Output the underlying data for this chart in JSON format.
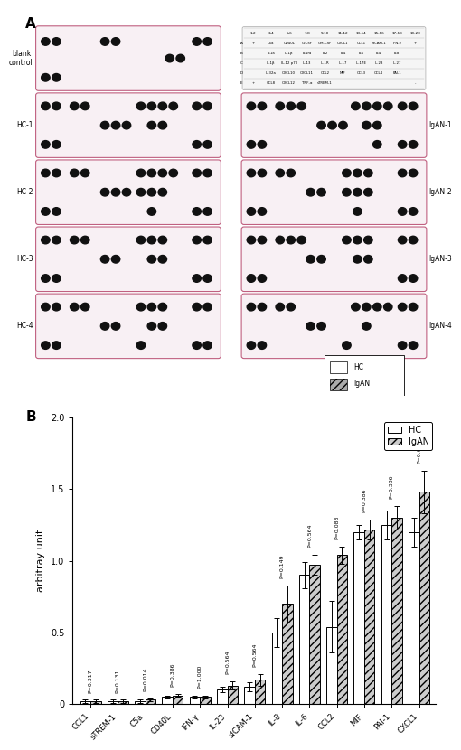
{
  "panel_A_label": "A",
  "panel_B_label": "B",
  "blot_labels_left": [
    "blank\ncontrol",
    "HC-1",
    "HC-2",
    "HC-3",
    "HC-4"
  ],
  "blot_labels_right": [
    "IgAN-1",
    "IgAN-2",
    "IgAN-3",
    "IgAN-4"
  ],
  "table_cols": [
    "1-2",
    "3-4",
    "5-6",
    "7-8",
    "9-10",
    "11-12",
    "13-14",
    "15-16",
    "17-18",
    "19-20"
  ],
  "table_rows": [
    "A",
    "B",
    "C",
    "D",
    "E"
  ],
  "table_data": [
    [
      "+",
      "C5a",
      "CD40L",
      "G-CSF",
      "GM-CSF",
      "CXCL1",
      "CCL1",
      "sICAM-1",
      "IFN-γ",
      "+"
    ],
    [
      "",
      "b-1a",
      "IL-1β",
      "b-1ra",
      "b-2",
      "b-4",
      "b-5",
      "b-4",
      "b-8",
      ""
    ],
    [
      "",
      "IL-1β",
      "IL-12 p70",
      "IL-13",
      "IL-1R",
      "IL-17",
      "IL-17E",
      "IL-23",
      "IL-27",
      ""
    ],
    [
      "",
      "IL-32a",
      "CXCL10",
      "CXCL11",
      "CCL2",
      "MIF",
      "CCL3",
      "CCL4",
      "PAI-1",
      ""
    ],
    [
      "+",
      "CCL8",
      "CXCL12",
      "TNF-α",
      "sTREM-1",
      "",
      "",
      "",
      "",
      "-"
    ]
  ],
  "bar_categories": [
    "CCL1",
    "sTREM-1",
    "C5a",
    "CD40L",
    "IFN-γ",
    "IL-23",
    "sICAM-1",
    "IL-8",
    "IL-6",
    "CCL2",
    "MIF",
    "PAI-1",
    "CXCL1"
  ],
  "hc_values": [
    0.02,
    0.02,
    0.02,
    0.05,
    0.05,
    0.1,
    0.12,
    0.5,
    0.9,
    0.54,
    1.2,
    1.25,
    1.2
  ],
  "igan_values": [
    0.02,
    0.02,
    0.03,
    0.06,
    0.05,
    0.13,
    0.17,
    0.7,
    0.97,
    1.04,
    1.22,
    1.3,
    1.48
  ],
  "hc_errors": [
    0.01,
    0.01,
    0.01,
    0.01,
    0.01,
    0.02,
    0.03,
    0.1,
    0.09,
    0.18,
    0.05,
    0.1,
    0.1
  ],
  "igan_errors": [
    0.01,
    0.01,
    0.01,
    0.01,
    0.01,
    0.03,
    0.04,
    0.13,
    0.07,
    0.06,
    0.07,
    0.08,
    0.15
  ],
  "p_values": [
    "P=0.317",
    "P=0.131",
    "P=0.014",
    "P=0.386",
    "P=1.000",
    "P=0.564",
    "P=0.564",
    "P=0.149",
    "P=0.564",
    "P=0.083",
    "P=0.386",
    "P=0.386",
    "P=0.083"
  ],
  "ylabel": "arbitray unit",
  "ylim": [
    0,
    2.0
  ],
  "yticks": [
    0.0,
    0.5,
    1.0,
    1.5,
    2.0
  ],
  "hc_color": "#ffffff",
  "igan_hatch": "////",
  "bar_edge_color": "#000000",
  "figure_bg": "#ffffff",
  "panel_border_color": "#c06080",
  "panel_bg_color": "#f8f0f4"
}
